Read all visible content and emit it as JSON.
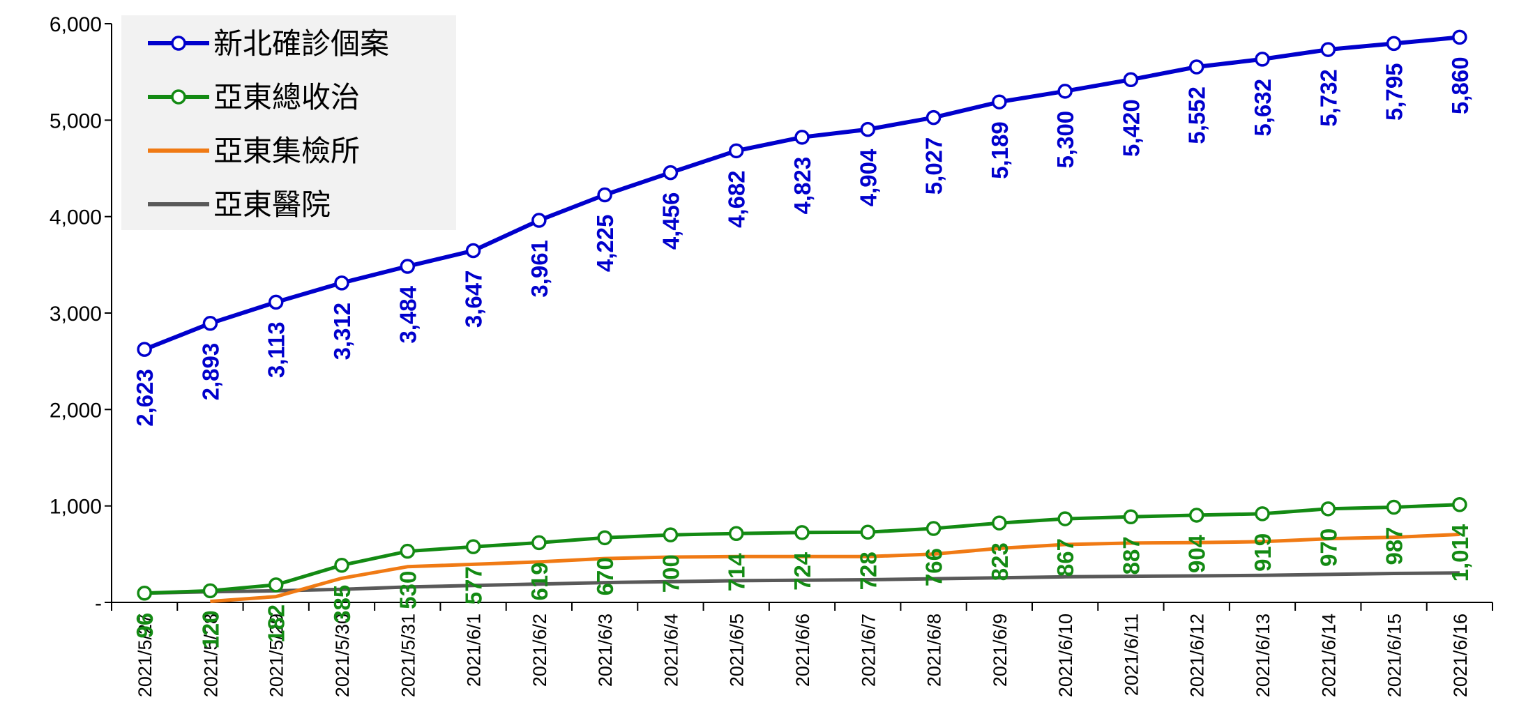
{
  "chart_data": {
    "type": "line",
    "categories": [
      "2021/5/27",
      "2021/5/28",
      "2021/5/29",
      "2021/5/30",
      "2021/5/31",
      "2021/6/1",
      "2021/6/2",
      "2021/6/3",
      "2021/6/4",
      "2021/6/5",
      "2021/6/6",
      "2021/6/7",
      "2021/6/8",
      "2021/6/9",
      "2021/6/10",
      "2021/6/11",
      "2021/6/12",
      "2021/6/13",
      "2021/6/14",
      "2021/6/15",
      "2021/6/16"
    ],
    "ylim": [
      0,
      6000
    ],
    "yticks": [
      0,
      1000,
      2000,
      3000,
      4000,
      5000,
      6000
    ],
    "ytick_labels": [
      "-",
      "1,000",
      "2,000",
      "3,000",
      "4,000",
      "5,000",
      "6,000"
    ],
    "grid": false,
    "legend_position": "top-left",
    "series": [
      {
        "name": "新北確診個案",
        "color": "#0000cc",
        "markers": true,
        "labeled": true,
        "values": [
          2623,
          2893,
          3113,
          3312,
          3484,
          3647,
          3961,
          4225,
          4456,
          4682,
          4823,
          4904,
          5027,
          5189,
          5300,
          5420,
          5552,
          5632,
          5732,
          5795,
          5860
        ],
        "labels": [
          "2,623",
          "2,893",
          "3,113",
          "3,312",
          "3,484",
          "3,647",
          "3,961",
          "4,225",
          "4,456",
          "4,682",
          "4,823",
          "4,904",
          "5,027",
          "5,189",
          "5,300",
          "5,420",
          "5,552",
          "5,632",
          "5,732",
          "5,795",
          "5,860"
        ]
      },
      {
        "name": "亞東總收治",
        "color": "#138a13",
        "markers": true,
        "labeled": true,
        "values": [
          96,
          120,
          182,
          385,
          530,
          577,
          619,
          670,
          700,
          714,
          724,
          728,
          766,
          823,
          867,
          887,
          904,
          919,
          970,
          987,
          1014
        ],
        "labels": [
          "96",
          "120",
          "182",
          "385",
          "530",
          "577",
          "619",
          "670",
          "700",
          "714",
          "724",
          "728",
          "766",
          "823",
          "867",
          "887",
          "904",
          "919",
          "970",
          "987",
          "1,014"
        ]
      },
      {
        "name": "亞東集檢所",
        "color": "#f07a14",
        "markers": false,
        "labeled": false,
        "values": [
          null,
          10,
          60,
          250,
          370,
          395,
          420,
          455,
          470,
          475,
          475,
          475,
          500,
          560,
          600,
          615,
          620,
          630,
          660,
          675,
          705
        ]
      },
      {
        "name": "亞東醫院",
        "color": "#595959",
        "markers": false,
        "labeled": false,
        "values": [
          96,
          110,
          120,
          135,
          160,
          175,
          190,
          205,
          215,
          225,
          230,
          235,
          245,
          255,
          265,
          270,
          275,
          280,
          290,
          300,
          305
        ]
      }
    ]
  }
}
